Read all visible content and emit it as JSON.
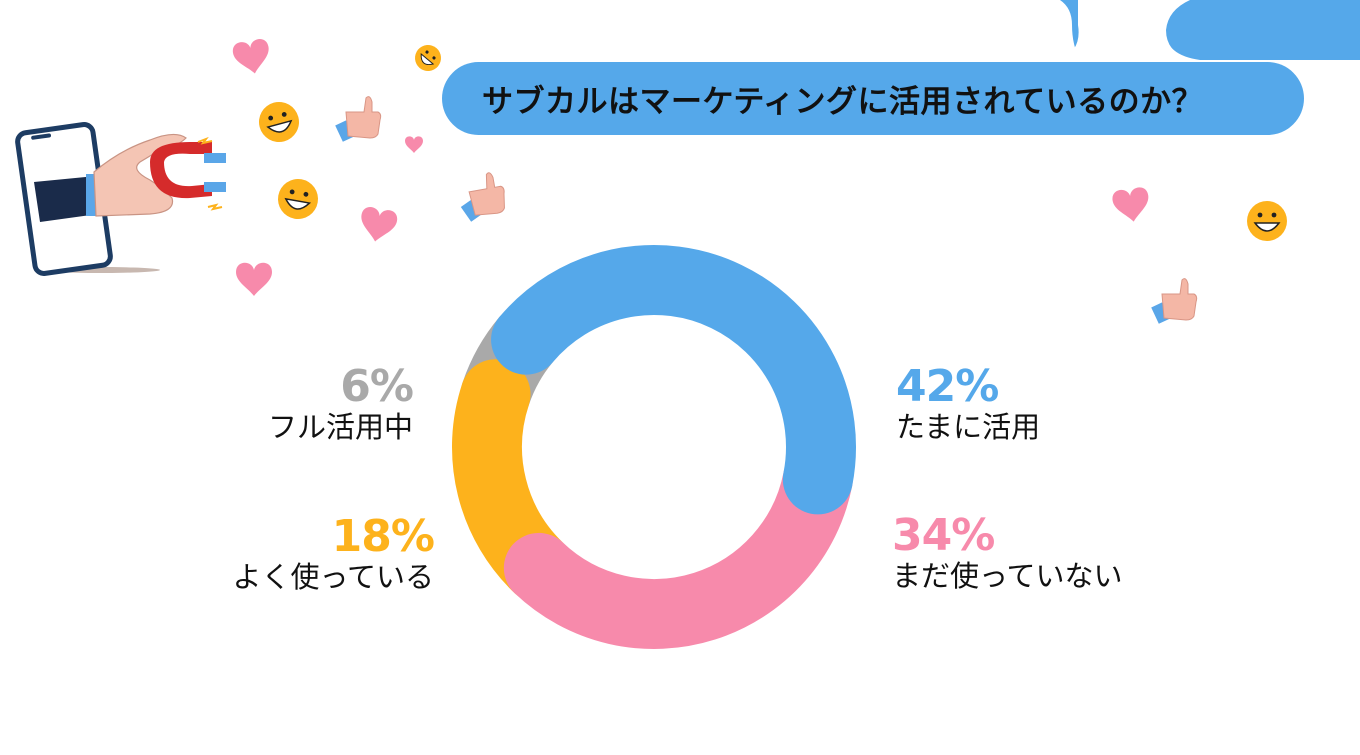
{
  "title": "サブカルはマーケティングに活用されているのか？",
  "chart_data": {
    "type": "pie",
    "title": "サブカルはマーケティングに活用されているのか？",
    "slices": [
      {
        "label": "たまに活用",
        "value": 42,
        "display": "42%",
        "color": "#55a8ea"
      },
      {
        "label": "まだ使っていない",
        "value": 34,
        "display": "34%",
        "color": "#f78aab"
      },
      {
        "label": "よく使っている",
        "value": 18,
        "display": "18%",
        "color": "#fdb21c"
      },
      {
        "label": "フル活用中",
        "value": 6,
        "display": "6%",
        "color": "#a9a9a9"
      }
    ]
  },
  "decorations": {
    "icons": [
      "phone-with-hand-magnet-icon",
      "heart-icon",
      "smiley-icon",
      "thumbs-up-icon"
    ]
  }
}
